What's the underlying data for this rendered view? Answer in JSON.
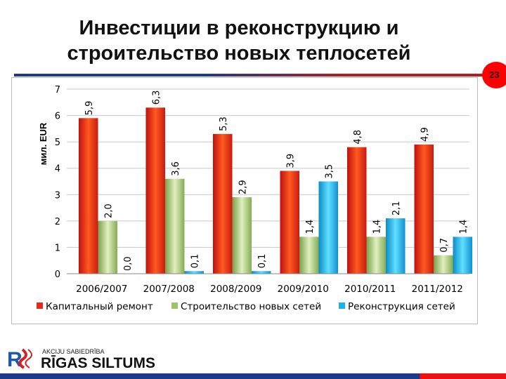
{
  "title": "Инвестиции в реконструкцию и строительство новых теплосетей",
  "page_number": "23",
  "logo": {
    "subtitle": "AKCIJU SABIEDRĪBA",
    "name": "RĪGAS SILTUMS",
    "mark": "RS"
  },
  "colors": {
    "series1": "#e8281a",
    "series2": "#9cc46a",
    "series3": "#1cb4e6"
  },
  "chart_data": {
    "type": "bar",
    "title": "",
    "ylabel": "мил. EUR",
    "ylim": [
      0,
      7
    ],
    "yticks": [
      "0",
      "1",
      "2",
      "3",
      "4",
      "5",
      "6",
      "7"
    ],
    "grid": true,
    "legend_placement": "bottom",
    "categories": [
      "2006/2007",
      "2007/2008",
      "2008/2009",
      "2009/2010",
      "2010/2011",
      "2011/2012"
    ],
    "series": [
      {
        "name": "Капитальный ремонт",
        "values": [
          5.9,
          6.3,
          5.3,
          3.9,
          4.8,
          4.9
        ],
        "labels": [
          "5,9",
          "6,3",
          "5,3",
          "3,9",
          "4,8",
          "4,9"
        ]
      },
      {
        "name": "Строительство новых сетей",
        "values": [
          2.0,
          3.6,
          2.9,
          1.4,
          1.4,
          0.7
        ],
        "labels": [
          "2,0",
          "3,6",
          "2,9",
          "1,4",
          "1,4",
          "0,7"
        ]
      },
      {
        "name": "Реконструкция сетей",
        "values": [
          0.0,
          0.1,
          0.1,
          3.5,
          2.1,
          1.4
        ],
        "labels": [
          "0,0",
          "0,1",
          "0,1",
          "3,5",
          "2,1",
          "1,4"
        ]
      }
    ]
  }
}
